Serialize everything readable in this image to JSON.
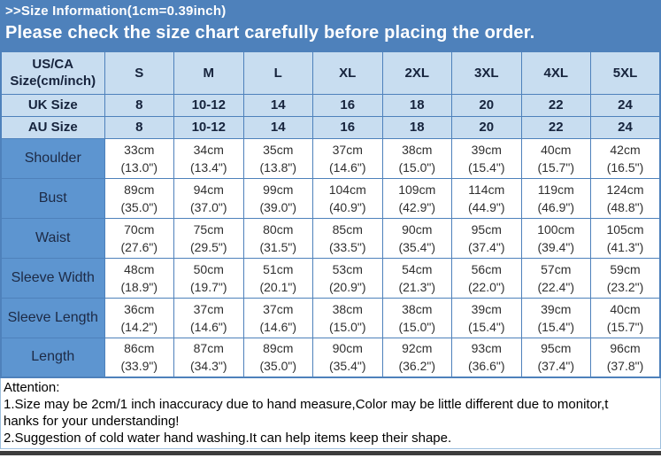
{
  "banner": {
    "line1": ">>Size Information(1cm=0.39inch)",
    "line2": "Please check the size chart carefully before placing the order."
  },
  "table": {
    "corner_header": {
      "line1": "US/CA",
      "line2": "Size(cm/inch)"
    },
    "sizes": [
      "S",
      "M",
      "L",
      "XL",
      "2XL",
      "3XL",
      "4XL",
      "5XL"
    ],
    "conversion_rows": [
      {
        "label": "UK Size",
        "values": [
          "8",
          "10-12",
          "14",
          "16",
          "18",
          "20",
          "22",
          "24"
        ]
      },
      {
        "label": "AU Size",
        "values": [
          "8",
          "10-12",
          "14",
          "16",
          "18",
          "20",
          "22",
          "24"
        ]
      }
    ],
    "measurement_rows": [
      {
        "label": "Shoulder",
        "cm": [
          "33cm",
          "34cm",
          "35cm",
          "37cm",
          "38cm",
          "39cm",
          "40cm",
          "42cm"
        ],
        "inch": [
          "(13.0\")",
          "(13.4\")",
          "(13.8\")",
          "(14.6\")",
          "(15.0\")",
          "(15.4\")",
          "(15.7\")",
          "(16.5\")"
        ]
      },
      {
        "label": "Bust",
        "cm": [
          "89cm",
          "94cm",
          "99cm",
          "104cm",
          "109cm",
          "114cm",
          "119cm",
          "124cm"
        ],
        "inch": [
          "(35.0\")",
          "(37.0\")",
          "(39.0\")",
          "(40.9\")",
          "(42.9\")",
          "(44.9\")",
          "(46.9\")",
          "(48.8\")"
        ]
      },
      {
        "label": "Waist",
        "cm": [
          "70cm",
          "75cm",
          "80cm",
          "85cm",
          "90cm",
          "95cm",
          "100cm",
          "105cm"
        ],
        "inch": [
          "(27.6\")",
          "(29.5\")",
          "(31.5\")",
          "(33.5\")",
          "(35.4\")",
          "(37.4\")",
          "(39.4\")",
          "(41.3\")"
        ]
      },
      {
        "label": "Sleeve Width",
        "cm": [
          "48cm",
          "50cm",
          "51cm",
          "53cm",
          "54cm",
          "56cm",
          "57cm",
          "59cm"
        ],
        "inch": [
          "(18.9\")",
          "(19.7\")",
          "(20.1\")",
          "(20.9\")",
          "(21.3\")",
          "(22.0\")",
          "(22.4\")",
          "(23.2\")"
        ]
      },
      {
        "label": "Sleeve Length",
        "cm": [
          "36cm",
          "37cm",
          "37cm",
          "38cm",
          "38cm",
          "39cm",
          "39cm",
          "40cm"
        ],
        "inch": [
          "(14.2\")",
          "(14.6\")",
          "(14.6\")",
          "(15.0\")",
          "(15.0\")",
          "(15.4\")",
          "(15.4\")",
          "(15.7\")"
        ]
      },
      {
        "label": "Length",
        "cm": [
          "86cm",
          "87cm",
          "89cm",
          "90cm",
          "92cm",
          "93cm",
          "95cm",
          "96cm"
        ],
        "inch": [
          "(33.9\")",
          "(34.3\")",
          "(35.0\")",
          "(35.4\")",
          "(36.2\")",
          "(36.6\")",
          "(37.4\")",
          "(37.8\")"
        ]
      }
    ]
  },
  "attention": {
    "lines": [
      "Attention:",
      "1.Size may be 2cm/1 inch inaccuracy due to hand measure,Color may be little different due to monitor,t",
      "hanks for your understanding!",
      "2.Suggestion of cold water hand washing.It can help items keep their shape."
    ]
  },
  "colors": {
    "banner_blue": "#4e81bb",
    "header_light_blue": "#c8ddf0",
    "row_label_blue": "#5d95d0",
    "table_border": "#4e81bb",
    "footer_bar": "#3d3d3d",
    "banner_text": "#ffffff",
    "header_text": "#16233c",
    "cell_text": "#2f2f2f"
  }
}
